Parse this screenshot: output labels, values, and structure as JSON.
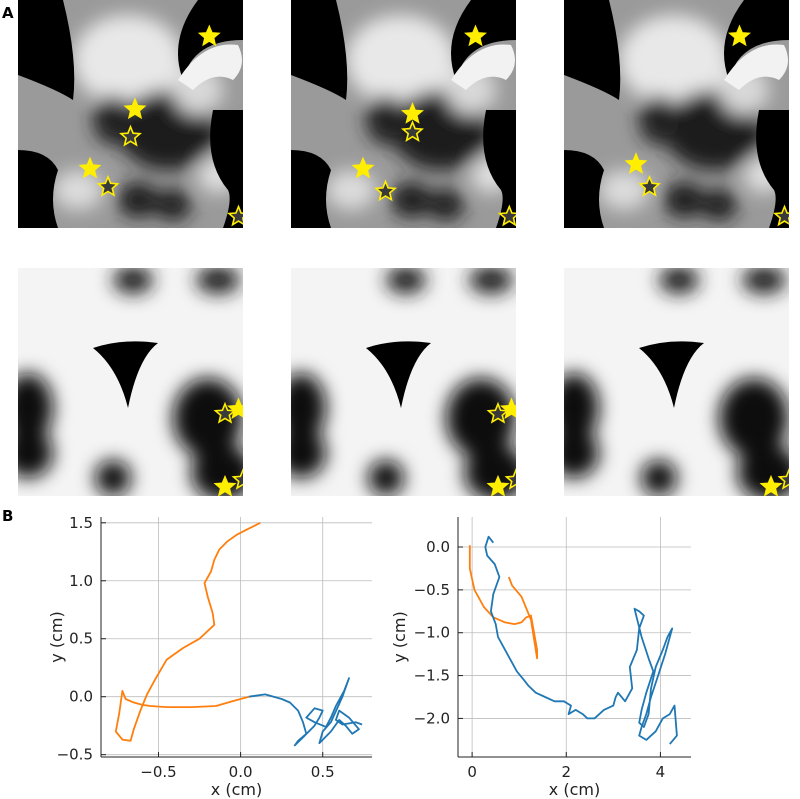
{
  "figure": {
    "panel_labels": {
      "a": "A",
      "b": "B"
    }
  },
  "panel_a": {
    "rows": [
      {
        "description_hidden": "",
        "tiles": [
          {
            "stars": [
              [
                0.52,
                0.48,
                "solid"
              ],
              [
                0.5,
                0.6,
                "outline"
              ],
              [
                0.32,
                0.74,
                "solid"
              ],
              [
                0.4,
                0.82,
                "outline"
              ],
              [
                0.85,
                0.16,
                "solid"
              ],
              [
                0.98,
                0.95,
                "outline"
              ]
            ]
          },
          {
            "stars": [
              [
                0.54,
                0.5,
                "solid"
              ],
              [
                0.54,
                0.58,
                "outline"
              ],
              [
                0.32,
                0.74,
                "solid"
              ],
              [
                0.42,
                0.84,
                "outline"
              ],
              [
                0.82,
                0.16,
                "solid"
              ],
              [
                0.97,
                0.95,
                "outline"
              ]
            ]
          },
          {
            "stars": [
              [
                0.32,
                0.72,
                "solid"
              ],
              [
                0.38,
                0.82,
                "outline"
              ],
              [
                0.78,
                0.16,
                "solid"
              ],
              [
                0.98,
                0.95,
                "outline"
              ]
            ]
          }
        ]
      },
      {
        "tiles": [
          {
            "stars": [
              [
                0.92,
                0.64,
                "outline"
              ],
              [
                0.98,
                0.62,
                "solid"
              ],
              [
                0.92,
                0.96,
                "solid"
              ],
              [
                1.0,
                0.93,
                "outline"
              ]
            ]
          },
          {
            "stars": [
              [
                0.92,
                0.64,
                "outline"
              ],
              [
                0.98,
                0.62,
                "solid"
              ],
              [
                0.92,
                0.96,
                "solid"
              ],
              [
                1.0,
                0.93,
                "outline"
              ]
            ]
          },
          {
            "stars": [
              [
                0.92,
                0.96,
                "solid"
              ],
              [
                1.0,
                0.93,
                "outline"
              ]
            ]
          }
        ]
      }
    ],
    "star_color": "#ffee00"
  },
  "chart_data": [
    {
      "type": "line",
      "xlabel": "x (cm)",
      "ylabel": "y (cm)",
      "xlim": [
        -0.85,
        0.8
      ],
      "ylim": [
        -0.52,
        1.55
      ],
      "xticks": [
        -0.5,
        0.0,
        0.5
      ],
      "xtick_labels": [
        "−0.5",
        "0.0",
        "0.5"
      ],
      "yticks": [
        -0.5,
        0.0,
        0.5,
        1.0,
        1.5
      ],
      "ytick_labels": [
        "−0.5",
        "0.0",
        "0.5",
        "1.0",
        "1.5"
      ],
      "grid": true,
      "series": [
        {
          "color": "#ff7f0e",
          "x": [
            0.12,
            0.05,
            -0.02,
            -0.08,
            -0.13,
            -0.16,
            -0.18,
            -0.22,
            -0.2,
            -0.17,
            -0.16,
            -0.25,
            -0.35,
            -0.45,
            -0.52,
            -0.57,
            -0.61,
            -0.65,
            -0.67,
            -0.72,
            -0.76,
            -0.74,
            -0.72,
            -0.7,
            -0.65,
            -0.6,
            -0.55,
            -0.45,
            -0.3,
            -0.15,
            -0.05,
            0.05
          ],
          "y": [
            1.5,
            1.45,
            1.4,
            1.34,
            1.27,
            1.18,
            1.08,
            0.98,
            0.86,
            0.72,
            0.62,
            0.5,
            0.42,
            0.32,
            0.15,
            0.02,
            -0.12,
            -0.28,
            -0.38,
            -0.37,
            -0.3,
            -0.15,
            0.05,
            -0.02,
            -0.05,
            -0.07,
            -0.08,
            -0.09,
            -0.09,
            -0.08,
            -0.04,
            0.0
          ]
        },
        {
          "color": "#1f77b4",
          "x": [
            0.05,
            0.15,
            0.25,
            0.3,
            0.35,
            0.38,
            0.4,
            0.35,
            0.33,
            0.38,
            0.45,
            0.48,
            0.5,
            0.45,
            0.4,
            0.45,
            0.52,
            0.55,
            0.58,
            0.63,
            0.66,
            0.62,
            0.55,
            0.5,
            0.48,
            0.55,
            0.6,
            0.64,
            0.68,
            0.72,
            0.66,
            0.6,
            0.58,
            0.62,
            0.7,
            0.74
          ],
          "y": [
            0.0,
            0.02,
            -0.02,
            -0.05,
            -0.12,
            -0.22,
            -0.32,
            -0.38,
            -0.42,
            -0.35,
            -0.25,
            -0.18,
            -0.12,
            -0.1,
            -0.18,
            -0.22,
            -0.26,
            -0.18,
            -0.08,
            0.05,
            0.16,
            0.0,
            -0.22,
            -0.3,
            -0.4,
            -0.3,
            -0.2,
            -0.25,
            -0.32,
            -0.28,
            -0.18,
            -0.12,
            -0.2,
            -0.24,
            -0.22,
            -0.24
          ]
        }
      ]
    },
    {
      "type": "line",
      "xlabel": "x (cm)",
      "ylabel": "y (cm)",
      "xlim": [
        -0.3,
        4.65
      ],
      "ylim": [
        -2.45,
        0.35
      ],
      "xticks": [
        0,
        2,
        4
      ],
      "xtick_labels": [
        "0",
        "2",
        "4"
      ],
      "yticks": [
        0.0,
        -0.5,
        -1.0,
        -1.5,
        -2.0
      ],
      "ytick_labels": [
        "0.0",
        "−0.5",
        "−1.0",
        "−1.5",
        "−2.0"
      ],
      "grid": true,
      "series": [
        {
          "color": "#ff7f0e",
          "x": [
            -0.05,
            -0.05,
            0.05,
            0.25,
            0.45,
            0.7,
            0.9,
            1.05,
            1.15,
            1.25,
            1.38,
            1.38,
            1.25,
            1.05,
            0.85,
            0.78
          ],
          "y": [
            0.02,
            -0.25,
            -0.5,
            -0.7,
            -0.82,
            -0.88,
            -0.9,
            -0.88,
            -0.82,
            -0.8,
            -1.2,
            -1.3,
            -0.85,
            -0.58,
            -0.45,
            -0.35
          ],
          "close": false
        },
        {
          "color": "#1f77b4",
          "x": [
            0.45,
            0.35,
            0.28,
            0.32,
            0.48,
            0.58,
            0.45,
            0.4,
            0.5,
            0.55,
            0.7,
            0.85,
            0.95,
            1.1,
            1.2,
            1.35,
            1.55,
            1.75,
            1.95,
            2.1,
            2.05,
            2.2,
            2.35,
            2.45,
            2.6,
            2.8,
            3.0,
            3.05,
            3.1,
            3.25,
            3.4,
            3.35,
            3.5,
            3.55,
            3.65,
            3.55,
            3.45,
            3.6,
            3.75,
            3.85,
            3.7,
            3.6,
            3.55,
            3.65,
            3.75,
            3.8,
            3.9,
            4.05,
            4.15,
            4.25,
            4.1,
            3.95,
            3.8,
            3.7,
            3.6,
            3.55,
            3.7,
            3.9,
            4.05,
            4.2,
            4.3,
            4.35,
            4.2
          ],
          "y": [
            0.05,
            0.12,
            0.0,
            -0.1,
            -0.2,
            -0.35,
            -0.55,
            -0.75,
            -0.9,
            -1.05,
            -1.2,
            -1.35,
            -1.45,
            -1.55,
            -1.62,
            -1.7,
            -1.75,
            -1.8,
            -1.8,
            -1.85,
            -1.95,
            -1.9,
            -1.95,
            -2.0,
            -2.0,
            -1.9,
            -1.85,
            -1.75,
            -1.7,
            -1.8,
            -1.65,
            -1.4,
            -1.2,
            -0.95,
            -0.8,
            -0.75,
            -0.72,
            -1.05,
            -1.3,
            -1.45,
            -1.7,
            -1.9,
            -2.05,
            -2.1,
            -1.95,
            -1.65,
            -1.4,
            -1.2,
            -1.05,
            -0.95,
            -1.25,
            -1.5,
            -1.75,
            -1.95,
            -2.1,
            -2.2,
            -2.25,
            -2.15,
            -2.0,
            -1.95,
            -1.85,
            -2.2,
            -2.3
          ]
        }
      ]
    }
  ]
}
